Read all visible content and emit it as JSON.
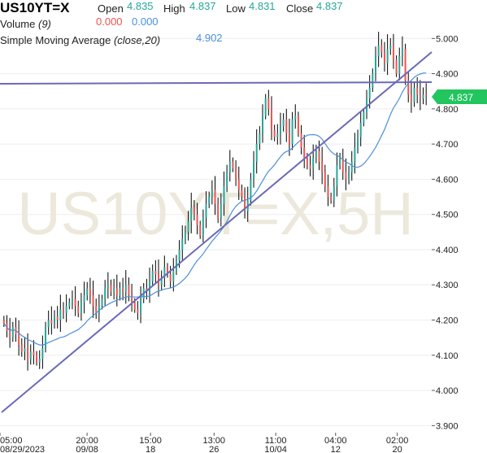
{
  "header": {
    "symbol": "US10YT=X",
    "open_label": "Open",
    "open_value": "4.835",
    "high_label": "High",
    "high_value": "4.837",
    "low_label": "Low",
    "low_value": "4.831",
    "close_label": "Close",
    "close_value": "4.837",
    "volume_label": "Volume",
    "volume_param": "(9)",
    "volume_value_1": "0.000",
    "volume_value_2": "0.000",
    "sma_label": "Simple Moving Average",
    "sma_param": "(close,20)",
    "sma_value": "4.902"
  },
  "colors": {
    "up": "#26a69a",
    "down": "#ef5350",
    "wick": "#000000",
    "sma": "#4a90d9",
    "trendline": "#6a6ab8",
    "price_badge": "#22c55e",
    "grid": "#eeeeee",
    "watermark": "#ece8dc"
  },
  "chart_data": {
    "type": "candlestick",
    "symbol": "US10YT=X",
    "watermark": "US10YT=X,5H",
    "last_price": "4.837",
    "y_ticks": [
      "3.900",
      "4.000",
      "4.100",
      "4.200",
      "4.300",
      "4.400",
      "4.500",
      "4.600",
      "4.700",
      "4.800",
      "4.900",
      "5.000"
    ],
    "ylim": [
      3.88,
      5.04
    ],
    "x_ticks": [
      {
        "top": "05:00",
        "bottom": "08/29/2023",
        "pos": 0.0
      },
      {
        "top": "20:00",
        "bottom": "09/08",
        "pos": 0.2017
      },
      {
        "top": "15:00",
        "bottom": "18",
        "pos": 0.3487
      },
      {
        "top": "13:00",
        "bottom": "26",
        "pos": 0.4958
      },
      {
        "top": "11:00",
        "bottom": "10/04",
        "pos": 0.6387
      },
      {
        "top": "04:00",
        "bottom": "12",
        "pos": 0.7773
      },
      {
        "top": "02:00",
        "bottom": "20",
        "pos": 0.9202
      }
    ],
    "closes": [
      4.19,
      4.17,
      4.15,
      4.18,
      4.16,
      4.13,
      4.11,
      4.12,
      4.09,
      4.11,
      4.1,
      4.08,
      4.09,
      4.12,
      4.18,
      4.2,
      4.19,
      4.21,
      4.2,
      4.23,
      4.22,
      4.24,
      4.25,
      4.26,
      4.24,
      4.22,
      4.25,
      4.27,
      4.29,
      4.27,
      4.24,
      4.22,
      4.24,
      4.26,
      4.29,
      4.3,
      4.28,
      4.29,
      4.27,
      4.29,
      4.28,
      4.3,
      4.27,
      4.25,
      4.23,
      4.22,
      4.26,
      4.29,
      4.28,
      4.31,
      4.34,
      4.33,
      4.3,
      4.32,
      4.35,
      4.33,
      4.31,
      4.34,
      4.37,
      4.4,
      4.43,
      4.45,
      4.48,
      4.52,
      4.5,
      4.47,
      4.44,
      4.49,
      4.53,
      4.55,
      4.57,
      4.53,
      4.49,
      4.53,
      4.58,
      4.62,
      4.65,
      4.63,
      4.6,
      4.57,
      4.55,
      4.51,
      4.54,
      4.6,
      4.65,
      4.7,
      4.73,
      4.78,
      4.83,
      4.8,
      4.74,
      4.72,
      4.73,
      4.75,
      4.77,
      4.73,
      4.7,
      4.77,
      4.78,
      4.73,
      4.69,
      4.66,
      4.64,
      4.63,
      4.66,
      4.68,
      4.65,
      4.62,
      4.58,
      4.55,
      4.54,
      4.58,
      4.64,
      4.66,
      4.62,
      4.6,
      4.62,
      4.65,
      4.69,
      4.72,
      4.76,
      4.79,
      4.83,
      4.86,
      4.9,
      4.95,
      4.98,
      4.96,
      4.93,
      4.97,
      4.98,
      4.94,
      4.9,
      4.95,
      4.97,
      4.88,
      4.84,
      4.82,
      4.86,
      4.84,
      4.83,
      4.84,
      4.837
    ]
  }
}
